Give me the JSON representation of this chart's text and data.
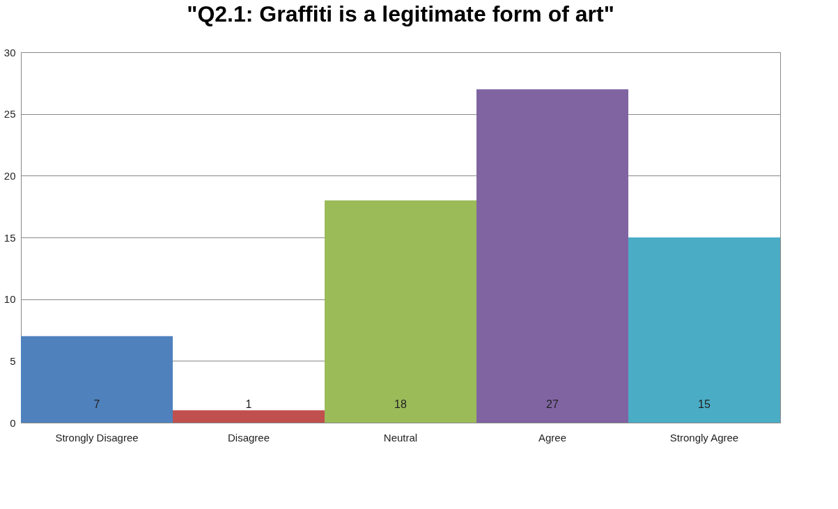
{
  "chart_data": {
    "type": "bar",
    "title": "\"Q2.1: Graffiti is a legitimate form of art\"",
    "categories": [
      "Strongly Disagree",
      "Disagree",
      "Neutral",
      "Agree",
      "Strongly Agree"
    ],
    "values": [
      7,
      1,
      18,
      27,
      15
    ],
    "colors": [
      "#4f81bd",
      "#c0504d",
      "#9bbb59",
      "#8064a2",
      "#4bacc6"
    ],
    "ylim": [
      0,
      30
    ],
    "yticks": [
      0,
      5,
      10,
      15,
      20,
      25,
      30
    ],
    "grid": "y",
    "data_labels": true
  }
}
